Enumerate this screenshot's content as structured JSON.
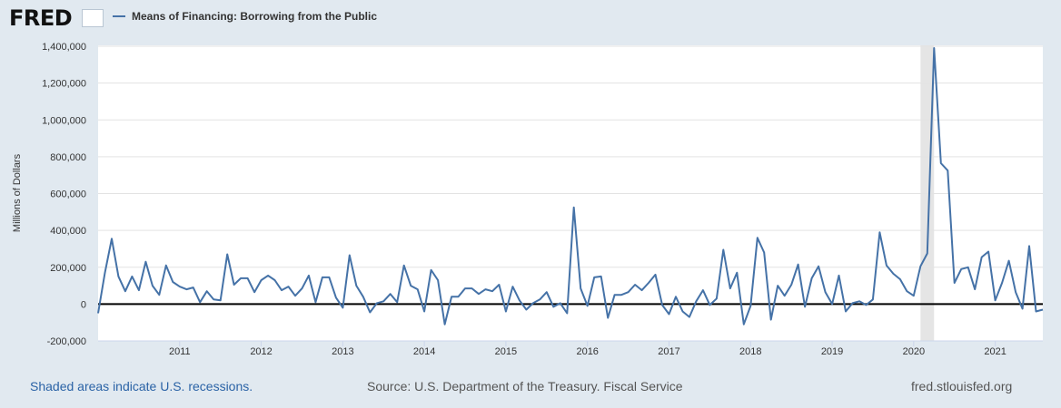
{
  "header": {
    "logo": "FRED",
    "legend_label": "Means of Financing: Borrowing from the Public",
    "series_color": "#4572a7"
  },
  "footer": {
    "recession_note": "Shaded areas indicate U.S. recessions.",
    "source": "Source: U.S. Department of the Treasury. Fiscal Service",
    "site": "fred.stlouisfed.org"
  },
  "chart_data": {
    "type": "line",
    "title": "",
    "ylabel": "Millions of Dollars",
    "xlabel": "",
    "x_start": "2010-01",
    "x_end": "2021-08",
    "frequency": "monthly",
    "ylim": [
      -200000,
      1400000
    ],
    "y_ticks": [
      "-200,000",
      "0",
      "200,000",
      "400,000",
      "600,000",
      "800,000",
      "1,000,000",
      "1,200,000",
      "1,400,000"
    ],
    "x_ticks": [
      "2011",
      "2012",
      "2013",
      "2014",
      "2015",
      "2016",
      "2017",
      "2018",
      "2019",
      "2020",
      "2021"
    ],
    "grid": true,
    "recessions": [
      {
        "start": "2020-02",
        "end": "2020-04"
      }
    ],
    "series": [
      {
        "name": "Means of Financing: Borrowing from the Public",
        "color": "#4572a7",
        "values": [
          -50000,
          170000,
          355000,
          150000,
          70000,
          150000,
          75000,
          230000,
          100000,
          50000,
          210000,
          120000,
          95000,
          80000,
          90000,
          10000,
          70000,
          25000,
          20000,
          270000,
          105000,
          140000,
          140000,
          65000,
          130000,
          155000,
          130000,
          75000,
          95000,
          45000,
          85000,
          155000,
          10000,
          145000,
          145000,
          35000,
          -20000,
          265000,
          100000,
          40000,
          -45000,
          5000,
          15000,
          55000,
          10000,
          210000,
          100000,
          80000,
          -40000,
          185000,
          130000,
          -110000,
          40000,
          40000,
          85000,
          85000,
          55000,
          80000,
          70000,
          105000,
          -40000,
          95000,
          20000,
          -30000,
          5000,
          25000,
          65000,
          -15000,
          5000,
          -50000,
          525000,
          85000,
          -10000,
          145000,
          150000,
          -75000,
          50000,
          50000,
          65000,
          105000,
          75000,
          115000,
          160000,
          -5000,
          -55000,
          40000,
          -40000,
          -70000,
          15000,
          75000,
          -5000,
          30000,
          295000,
          85000,
          170000,
          -110000,
          -10000,
          360000,
          280000,
          -85000,
          100000,
          45000,
          105000,
          215000,
          -15000,
          140000,
          205000,
          65000,
          0,
          155000,
          -40000,
          5000,
          15000,
          -5000,
          25000,
          390000,
          210000,
          165000,
          135000,
          70000,
          45000,
          205000,
          275000,
          1390000,
          765000,
          725000,
          115000,
          190000,
          200000,
          80000,
          255000,
          285000,
          20000,
          115000,
          235000,
          65000,
          -25000,
          315000,
          -40000,
          -30000
        ]
      }
    ]
  }
}
